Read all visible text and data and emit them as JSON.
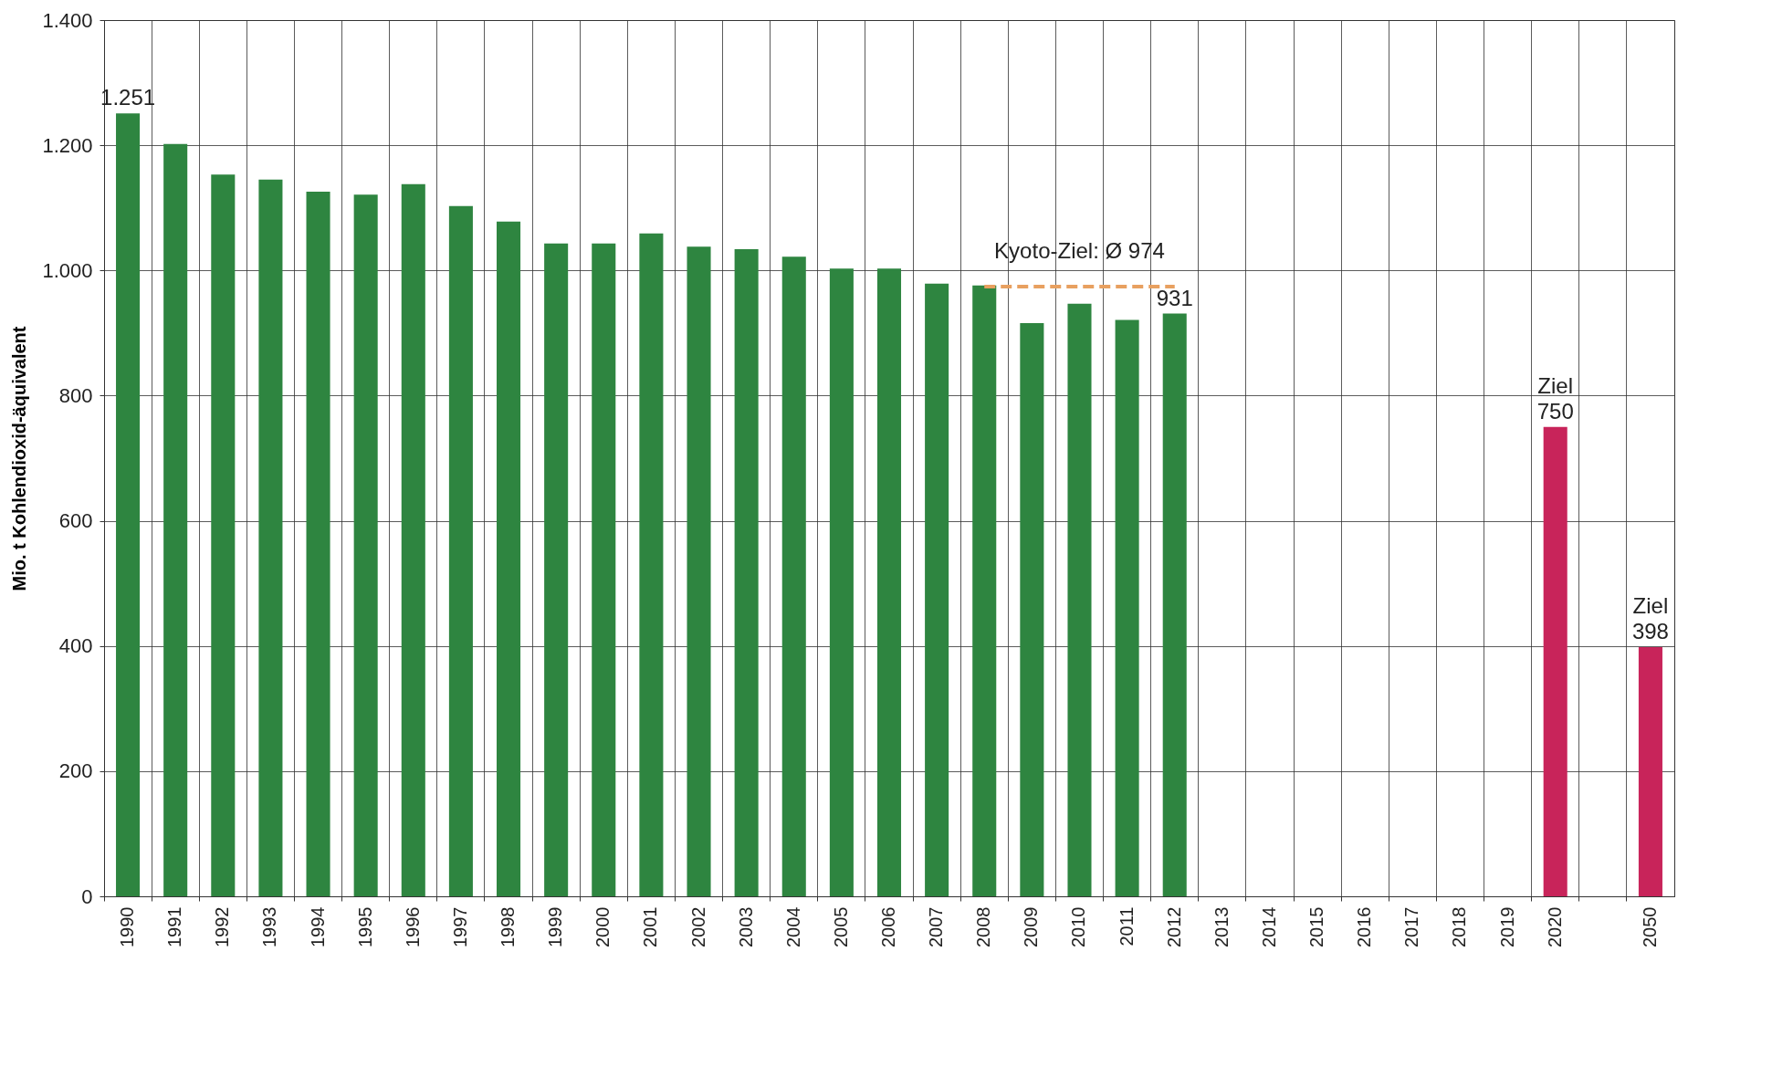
{
  "chart_data": {
    "type": "bar",
    "ylabel": "Mio. t Kohlendioxid-äquivalent",
    "categories": [
      "1990",
      "1991",
      "1992",
      "1993",
      "1994",
      "1995",
      "1996",
      "1997",
      "1998",
      "1999",
      "2000",
      "2001",
      "2002",
      "2003",
      "2004",
      "2005",
      "2006",
      "2007",
      "2008",
      "2009",
      "2010",
      "2011",
      "2012",
      "2013",
      "2014",
      "2015",
      "2016",
      "2017",
      "2018",
      "2019",
      "2020",
      null,
      "2050"
    ],
    "values": [
      1251,
      1202,
      1153,
      1145,
      1126,
      1121,
      1138,
      1103,
      1078,
      1043,
      1043,
      1059,
      1038,
      1034,
      1022,
      1003,
      1003,
      979,
      976,
      916,
      947,
      921,
      931,
      null,
      null,
      null,
      null,
      null,
      null,
      null,
      750,
      null,
      398
    ],
    "value_labels": [
      "1.251",
      null,
      null,
      null,
      null,
      null,
      null,
      null,
      null,
      null,
      null,
      null,
      null,
      null,
      null,
      null,
      null,
      null,
      null,
      null,
      null,
      null,
      "931",
      null,
      null,
      null,
      null,
      null,
      null,
      null,
      "750",
      null,
      "398"
    ],
    "colors": [
      "#2e8540",
      "#2e8540",
      "#2e8540",
      "#2e8540",
      "#2e8540",
      "#2e8540",
      "#2e8540",
      "#2e8540",
      "#2e8540",
      "#2e8540",
      "#2e8540",
      "#2e8540",
      "#2e8540",
      "#2e8540",
      "#2e8540",
      "#2e8540",
      "#2e8540",
      "#2e8540",
      "#2e8540",
      "#2e8540",
      "#2e8540",
      "#2e8540",
      "#2e8540",
      "#2e8540",
      "#2e8540",
      "#2e8540",
      "#2e8540",
      "#2e8540",
      "#2e8540",
      "#2e8540",
      "#c8245a",
      "#c8245a",
      "#c8245a"
    ],
    "annotations": [
      "Ziel",
      "Ziel"
    ],
    "ref_lines": [
      {
        "axis": "y",
        "value": 974,
        "label": "Kyoto-Ziel: Ø 974",
        "color": "#e8a060",
        "line_style": "dashed"
      }
    ],
    "ylim": [
      0,
      1400
    ],
    "yticks": [
      0,
      200,
      400,
      600,
      800,
      {
        "value": 1000,
        "label": "1.000"
      },
      {
        "value": 1200,
        "label": "1.200"
      },
      {
        "value": 1400,
        "label": "1.400"
      }
    ],
    "grid": true
  }
}
